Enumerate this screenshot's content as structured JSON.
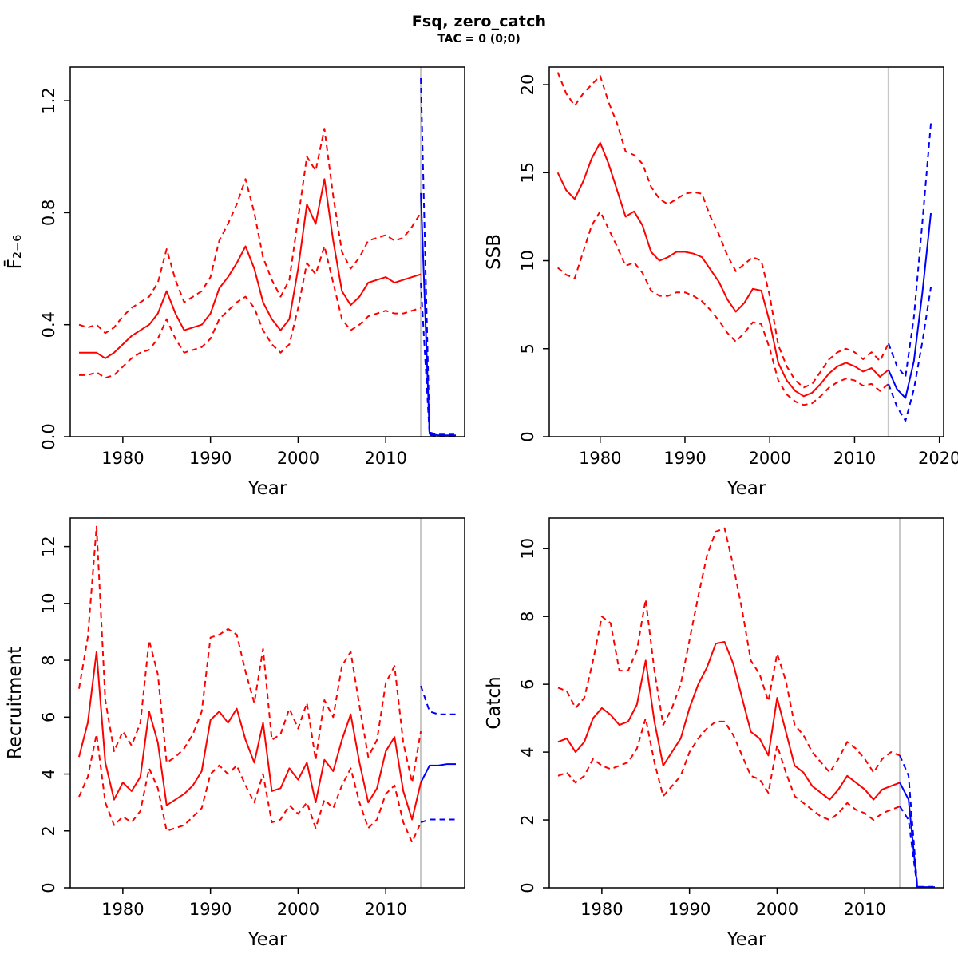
{
  "title": "Fsq, zero_catch",
  "subtitle": "TAC = 0 (0;0)",
  "colors": {
    "history": "#ff0000",
    "forecast": "#0000ff",
    "divider": "#c8c8c8",
    "frame": "#000000",
    "text": "#000000",
    "background": "#ffffff"
  },
  "chart_data": [
    {
      "type": "line",
      "name": "fbar",
      "ylabel": "F̄₂₋₆",
      "xlabel": "Year",
      "xlim": [
        1974,
        2019
      ],
      "ylim": [
        0,
        1.32
      ],
      "grid": false,
      "legend": "none",
      "forecast_divider_x": 2014,
      "xticks": {
        "values": [
          1980,
          1990,
          2000,
          2010
        ],
        "labels": [
          "1980",
          "1990",
          "2000",
          "2010"
        ]
      },
      "yticks": {
        "values": [
          0,
          0.4,
          0.8,
          1.2
        ],
        "labels": [
          "0.0",
          "0.4",
          "0.8",
          "1.2"
        ]
      },
      "series": [
        {
          "name": "history-upper-ci",
          "role": "history",
          "style": "dashed",
          "x_from": 1975,
          "values": [
            0.4,
            0.39,
            0.4,
            0.37,
            0.39,
            0.43,
            0.46,
            0.48,
            0.5,
            0.55,
            0.67,
            0.56,
            0.48,
            0.5,
            0.52,
            0.57,
            0.7,
            0.76,
            0.83,
            0.92,
            0.8,
            0.64,
            0.56,
            0.5,
            0.56,
            0.78,
            1.0,
            0.95,
            1.1,
            0.86,
            0.66,
            0.6,
            0.64,
            0.7,
            0.71,
            0.72,
            0.7,
            0.71,
            0.75,
            0.8
          ]
        },
        {
          "name": "history-median",
          "role": "history",
          "style": "solid",
          "x_from": 1975,
          "values": [
            0.3,
            0.3,
            0.3,
            0.28,
            0.3,
            0.33,
            0.36,
            0.38,
            0.4,
            0.44,
            0.52,
            0.44,
            0.38,
            0.39,
            0.4,
            0.44,
            0.53,
            0.57,
            0.62,
            0.68,
            0.6,
            0.48,
            0.42,
            0.38,
            0.42,
            0.6,
            0.83,
            0.76,
            0.92,
            0.7,
            0.52,
            0.47,
            0.5,
            0.55,
            0.56,
            0.57,
            0.55,
            0.56,
            0.57,
            0.58
          ]
        },
        {
          "name": "history-lower-ci",
          "role": "history",
          "style": "dashed",
          "x_from": 1975,
          "values": [
            0.22,
            0.22,
            0.23,
            0.21,
            0.22,
            0.25,
            0.28,
            0.3,
            0.31,
            0.35,
            0.42,
            0.35,
            0.3,
            0.31,
            0.32,
            0.35,
            0.42,
            0.45,
            0.48,
            0.5,
            0.46,
            0.38,
            0.33,
            0.3,
            0.33,
            0.46,
            0.62,
            0.58,
            0.68,
            0.55,
            0.42,
            0.38,
            0.4,
            0.43,
            0.44,
            0.45,
            0.44,
            0.44,
            0.45,
            0.46
          ]
        },
        {
          "name": "forecast-upper-ci",
          "role": "forecast",
          "style": "dashed",
          "x_from": 2014,
          "values": [
            1.28,
            0.015,
            0.008,
            0.008,
            0.008
          ]
        },
        {
          "name": "forecast-median",
          "role": "forecast",
          "style": "solid",
          "x_from": 2014,
          "values": [
            0.87,
            0.01,
            0.005,
            0.005,
            0.005
          ]
        },
        {
          "name": "forecast-lower-ci",
          "role": "forecast",
          "style": "dashed",
          "x_from": 2014,
          "values": [
            0.55,
            0.006,
            0.003,
            0.003,
            0.003
          ]
        }
      ]
    },
    {
      "type": "line",
      "name": "ssb",
      "ylabel": "SSB",
      "xlabel": "Year",
      "xlim": [
        1974,
        2020.5
      ],
      "ylim": [
        0,
        21
      ],
      "grid": false,
      "legend": "none",
      "forecast_divider_x": 2014,
      "xticks": {
        "values": [
          1980,
          1990,
          2000,
          2010,
          2020
        ],
        "labels": [
          "1980",
          "1990",
          "2000",
          "2010",
          "2020"
        ]
      },
      "yticks": {
        "values": [
          0,
          5,
          10,
          15,
          20
        ],
        "labels": [
          "0",
          "5",
          "10",
          "15",
          "20"
        ]
      },
      "series": [
        {
          "name": "history-upper-ci",
          "role": "history",
          "style": "dashed",
          "x_from": 1975,
          "values": [
            20.7,
            19.5,
            18.8,
            19.5,
            20.0,
            20.5,
            19.0,
            17.8,
            16.2,
            16.0,
            15.5,
            14.2,
            13.5,
            13.2,
            13.5,
            13.8,
            13.9,
            13.8,
            12.5,
            11.5,
            10.3,
            9.4,
            9.8,
            10.2,
            10.0,
            8.0,
            5.2,
            4.0,
            3.2,
            2.8,
            3.0,
            3.7,
            4.4,
            4.8,
            5.0,
            4.8,
            4.4,
            4.8,
            4.3,
            5.3
          ]
        },
        {
          "name": "history-median",
          "role": "history",
          "style": "solid",
          "x_from": 1975,
          "values": [
            15.0,
            14.0,
            13.5,
            14.5,
            15.8,
            16.7,
            15.5,
            14.0,
            12.5,
            12.8,
            12.0,
            10.5,
            10.0,
            10.2,
            10.5,
            10.5,
            10.4,
            10.2,
            9.5,
            8.8,
            7.8,
            7.1,
            7.6,
            8.4,
            8.3,
            6.5,
            4.2,
            3.2,
            2.6,
            2.3,
            2.5,
            3.0,
            3.6,
            4.0,
            4.2,
            4.0,
            3.7,
            3.9,
            3.4,
            3.8
          ]
        },
        {
          "name": "history-lower-ci",
          "role": "history",
          "style": "dashed",
          "x_from": 1975,
          "values": [
            9.6,
            9.2,
            9.0,
            10.5,
            12.0,
            12.8,
            11.8,
            10.8,
            9.7,
            9.9,
            9.3,
            8.3,
            8.0,
            8.0,
            8.2,
            8.2,
            8.0,
            7.7,
            7.2,
            6.6,
            5.9,
            5.4,
            5.9,
            6.5,
            6.4,
            5.0,
            3.2,
            2.4,
            2.0,
            1.8,
            1.9,
            2.3,
            2.8,
            3.1,
            3.3,
            3.2,
            2.9,
            3.0,
            2.6,
            3.0
          ]
        },
        {
          "name": "forecast-upper-ci",
          "role": "forecast",
          "style": "dashed",
          "x_from": 2014,
          "values": [
            5.3,
            4.0,
            3.4,
            6.8,
            12.2,
            17.8
          ]
        },
        {
          "name": "forecast-median",
          "role": "forecast",
          "style": "solid",
          "x_from": 2014,
          "values": [
            3.8,
            2.7,
            2.2,
            4.3,
            8.2,
            12.7
          ]
        },
        {
          "name": "forecast-lower-ci",
          "role": "forecast",
          "style": "dashed",
          "x_from": 2014,
          "values": [
            3.0,
            1.7,
            0.9,
            2.7,
            5.4,
            8.5
          ]
        }
      ]
    },
    {
      "type": "line",
      "name": "recruitment",
      "ylabel": "Recruitment",
      "xlabel": "Year",
      "xlim": [
        1974,
        2019
      ],
      "ylim": [
        0,
        13
      ],
      "grid": false,
      "legend": "none",
      "forecast_divider_x": 2014,
      "xticks": {
        "values": [
          1980,
          1990,
          2000,
          2010
        ],
        "labels": [
          "1980",
          "1990",
          "2000",
          "2010"
        ]
      },
      "yticks": {
        "values": [
          0,
          2,
          4,
          6,
          8,
          10,
          12
        ],
        "labels": [
          "0",
          "2",
          "4",
          "6",
          "8",
          "10",
          "12"
        ]
      },
      "series": [
        {
          "name": "history-upper-ci",
          "role": "history",
          "style": "dashed",
          "x_from": 1975,
          "values": [
            7.0,
            8.8,
            12.7,
            6.6,
            4.8,
            5.5,
            5.0,
            5.8,
            8.7,
            7.5,
            4.4,
            4.6,
            4.9,
            5.4,
            6.2,
            8.8,
            8.9,
            9.1,
            8.9,
            7.6,
            6.5,
            8.4,
            5.2,
            5.4,
            6.3,
            5.6,
            6.5,
            4.5,
            6.6,
            6.0,
            7.8,
            8.3,
            6.4,
            4.6,
            5.2,
            7.2,
            7.8,
            5.1,
            3.7,
            5.5
          ]
        },
        {
          "name": "history-median",
          "role": "history",
          "style": "solid",
          "x_from": 1975,
          "values": [
            4.6,
            5.8,
            8.3,
            4.4,
            3.1,
            3.7,
            3.4,
            3.9,
            6.2,
            5.1,
            2.9,
            3.1,
            3.3,
            3.6,
            4.1,
            5.9,
            6.2,
            5.8,
            6.3,
            5.2,
            4.4,
            5.8,
            3.4,
            3.5,
            4.2,
            3.8,
            4.4,
            3.0,
            4.5,
            4.1,
            5.2,
            6.1,
            4.4,
            3.0,
            3.5,
            4.8,
            5.3,
            3.4,
            2.4,
            3.7
          ]
        },
        {
          "name": "history-lower-ci",
          "role": "history",
          "style": "dashed",
          "x_from": 1975,
          "values": [
            3.2,
            3.9,
            5.4,
            3.0,
            2.2,
            2.5,
            2.3,
            2.7,
            4.2,
            3.5,
            2.0,
            2.1,
            2.2,
            2.5,
            2.8,
            4.0,
            4.3,
            4.0,
            4.3,
            3.6,
            3.0,
            4.0,
            2.3,
            2.4,
            2.9,
            2.6,
            3.0,
            2.1,
            3.1,
            2.8,
            3.6,
            4.2,
            3.0,
            2.1,
            2.4,
            3.3,
            3.6,
            2.3,
            1.6,
            2.3
          ]
        },
        {
          "name": "forecast-upper-ci",
          "role": "forecast",
          "style": "dashed",
          "x_from": 2014,
          "values": [
            7.1,
            6.2,
            6.1,
            6.1,
            6.1
          ]
        },
        {
          "name": "forecast-median",
          "role": "forecast",
          "style": "solid",
          "x_from": 2014,
          "values": [
            3.7,
            4.3,
            4.3,
            4.35,
            4.35
          ]
        },
        {
          "name": "forecast-lower-ci",
          "role": "forecast",
          "style": "dashed",
          "x_from": 2014,
          "values": [
            2.3,
            2.4,
            2.4,
            2.4,
            2.4
          ]
        }
      ]
    },
    {
      "type": "line",
      "name": "catch",
      "ylabel": "Catch",
      "xlabel": "Year",
      "xlim": [
        1974,
        2019
      ],
      "ylim": [
        0,
        10.9
      ],
      "grid": false,
      "legend": "none",
      "forecast_divider_x": 2014,
      "xticks": {
        "values": [
          1980,
          1990,
          2000,
          2010
        ],
        "labels": [
          "1980",
          "1990",
          "2000",
          "2010"
        ]
      },
      "yticks": {
        "values": [
          0,
          2,
          4,
          6,
          8,
          10
        ],
        "labels": [
          "0",
          "2",
          "4",
          "6",
          "8",
          "10"
        ]
      },
      "series": [
        {
          "name": "history-upper-ci",
          "role": "history",
          "style": "dashed",
          "x_from": 1975,
          "values": [
            5.9,
            5.8,
            5.3,
            5.6,
            6.7,
            8.0,
            7.8,
            6.4,
            6.4,
            7.0,
            8.5,
            6.4,
            4.8,
            5.3,
            6.0,
            7.3,
            8.6,
            9.8,
            10.5,
            10.6,
            9.5,
            8.2,
            6.7,
            6.3,
            5.5,
            6.9,
            6.1,
            4.8,
            4.5,
            4.0,
            3.7,
            3.4,
            3.8,
            4.3,
            4.1,
            3.8,
            3.4,
            3.8,
            4.0,
            3.9
          ]
        },
        {
          "name": "history-median",
          "role": "history",
          "style": "solid",
          "x_from": 1975,
          "values": [
            4.3,
            4.4,
            4.0,
            4.3,
            5.0,
            5.3,
            5.1,
            4.8,
            4.9,
            5.4,
            6.7,
            4.9,
            3.6,
            4.0,
            4.4,
            5.3,
            6.0,
            6.5,
            7.2,
            7.25,
            6.6,
            5.6,
            4.6,
            4.4,
            3.9,
            5.6,
            4.6,
            3.6,
            3.4,
            3.0,
            2.8,
            2.6,
            2.9,
            3.3,
            3.1,
            2.9,
            2.6,
            2.9,
            3.0,
            3.1
          ]
        },
        {
          "name": "history-lower-ci",
          "role": "history",
          "style": "dashed",
          "x_from": 1975,
          "values": [
            3.3,
            3.4,
            3.1,
            3.3,
            3.8,
            3.6,
            3.5,
            3.6,
            3.7,
            4.1,
            5.0,
            3.7,
            2.7,
            3.0,
            3.3,
            4.0,
            4.4,
            4.7,
            4.9,
            4.9,
            4.5,
            3.9,
            3.3,
            3.2,
            2.8,
            4.2,
            3.4,
            2.7,
            2.5,
            2.3,
            2.1,
            2.0,
            2.2,
            2.5,
            2.3,
            2.2,
            2.0,
            2.2,
            2.3,
            2.4
          ]
        },
        {
          "name": "forecast-upper-ci",
          "role": "forecast",
          "style": "dashed",
          "x_from": 2014,
          "values": [
            3.9,
            3.3,
            0.03,
            0.03,
            0.03
          ]
        },
        {
          "name": "forecast-median",
          "role": "forecast",
          "style": "solid",
          "x_from": 2014,
          "values": [
            3.1,
            2.6,
            0.02,
            0.02,
            0.02
          ]
        },
        {
          "name": "forecast-lower-ci",
          "role": "forecast",
          "style": "dashed",
          "x_from": 2014,
          "values": [
            2.4,
            2.0,
            0.01,
            0.01,
            0.01
          ]
        }
      ]
    }
  ]
}
